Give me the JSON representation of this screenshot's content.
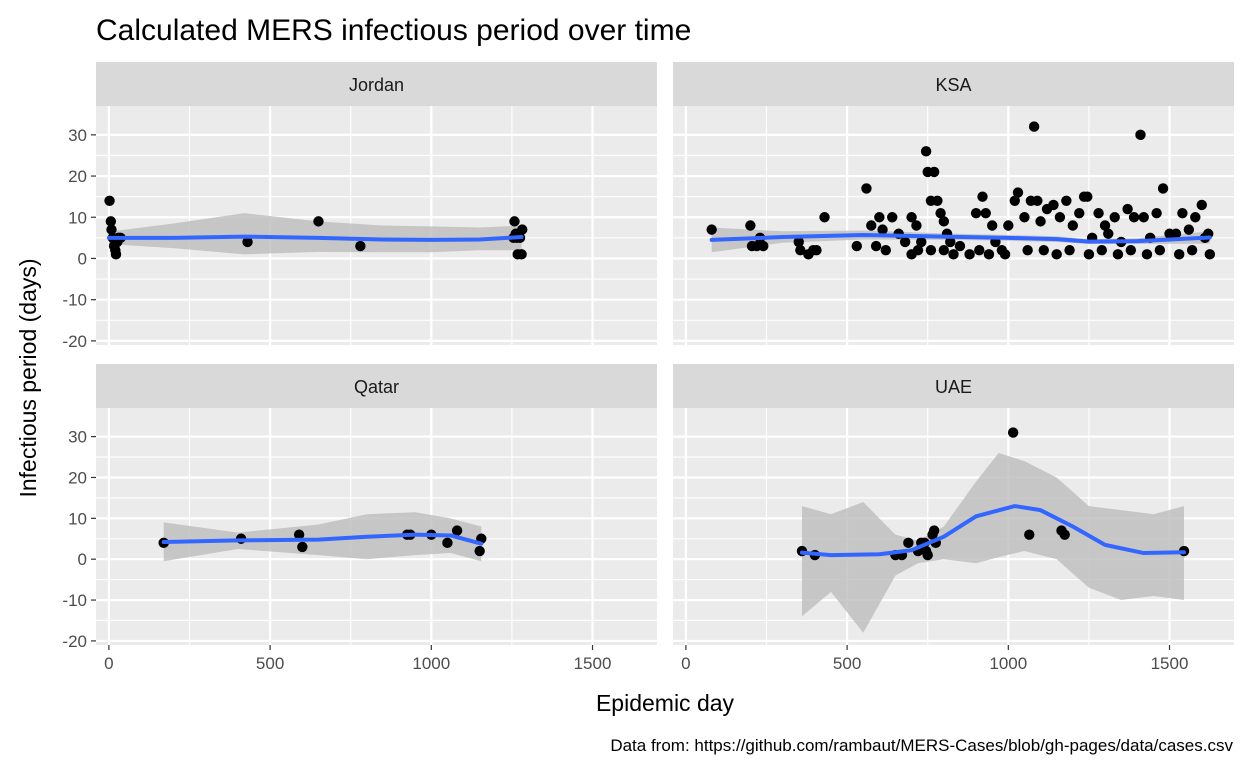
{
  "title": "Calculated MERS infectious period over time",
  "caption": "Data from: https://github.com/rambaut/MERS-Cases/blob/gh-pages/data/cases.csv",
  "colors": {
    "panel_bg": "#EBEBEB",
    "strip_bg": "#D9D9D9",
    "grid": "#FFFFFF",
    "point": "#000000",
    "smooth_line": "#3366FF",
    "ribbon": "#BDBDBD",
    "axis_text": "#4D4D4D"
  },
  "chart_data": {
    "type": "scatter",
    "facet_layout": "2x2",
    "xlabel": "Epidemic day",
    "ylabel": "Infectious period (days)",
    "xlim": [
      -40,
      1700
    ],
    "ylim": [
      -21,
      37
    ],
    "x_ticks": [
      0,
      500,
      1000,
      1500
    ],
    "y_ticks": [
      -20,
      -10,
      0,
      10,
      20,
      30
    ],
    "grid": true,
    "smooth_method": "loess",
    "panels": [
      {
        "name": "Jordan",
        "points": [
          [
            2,
            14
          ],
          [
            6,
            9
          ],
          [
            8,
            7
          ],
          [
            12,
            5
          ],
          [
            16,
            3
          ],
          [
            20,
            2
          ],
          [
            22,
            1
          ],
          [
            26,
            4
          ],
          [
            30,
            5
          ],
          [
            36,
            5
          ],
          [
            430,
            4
          ],
          [
            650,
            9
          ],
          [
            780,
            3
          ],
          [
            1255,
            5
          ],
          [
            1258,
            9
          ],
          [
            1262,
            6
          ],
          [
            1265,
            5
          ],
          [
            1268,
            1
          ],
          [
            1272,
            6
          ],
          [
            1275,
            5
          ],
          [
            1280,
            1
          ],
          [
            1282,
            7
          ]
        ],
        "smooth": [
          [
            0,
            5
          ],
          [
            200,
            5
          ],
          [
            420,
            5.3
          ],
          [
            650,
            5
          ],
          [
            850,
            4.6
          ],
          [
            1000,
            4.5
          ],
          [
            1150,
            4.6
          ],
          [
            1280,
            5.2
          ]
        ],
        "ribbon": [
          [
            0,
            3.5,
            6.5
          ],
          [
            200,
            2.5,
            8.5
          ],
          [
            420,
            1,
            11
          ],
          [
            650,
            1.6,
            9
          ],
          [
            850,
            1.5,
            8
          ],
          [
            1000,
            1.5,
            7.8
          ],
          [
            1150,
            2,
            7.5
          ],
          [
            1280,
            2,
            8
          ]
        ]
      },
      {
        "name": "KSA",
        "points": [
          [
            80,
            7
          ],
          [
            200,
            8
          ],
          [
            205,
            3
          ],
          [
            220,
            3
          ],
          [
            230,
            5
          ],
          [
            240,
            3
          ],
          [
            350,
            4
          ],
          [
            355,
            2
          ],
          [
            380,
            1
          ],
          [
            395,
            2
          ],
          [
            405,
            2
          ],
          [
            430,
            10
          ],
          [
            530,
            3
          ],
          [
            560,
            17
          ],
          [
            575,
            8
          ],
          [
            590,
            3
          ],
          [
            600,
            10
          ],
          [
            610,
            7
          ],
          [
            620,
            2
          ],
          [
            640,
            10
          ],
          [
            660,
            6
          ],
          [
            680,
            4
          ],
          [
            700,
            10
          ],
          [
            715,
            8
          ],
          [
            730,
            4
          ],
          [
            745,
            26
          ],
          [
            750,
            21
          ],
          [
            760,
            14
          ],
          [
            770,
            21
          ],
          [
            780,
            14
          ],
          [
            790,
            11
          ],
          [
            800,
            9
          ],
          [
            810,
            6
          ],
          [
            820,
            4
          ],
          [
            830,
            1
          ],
          [
            850,
            3
          ],
          [
            900,
            11
          ],
          [
            920,
            15
          ],
          [
            930,
            11
          ],
          [
            950,
            8
          ],
          [
            960,
            4
          ],
          [
            980,
            2
          ],
          [
            1000,
            8
          ],
          [
            1020,
            14
          ],
          [
            1030,
            16
          ],
          [
            1050,
            10
          ],
          [
            1070,
            14
          ],
          [
            1080,
            32
          ],
          [
            1090,
            14
          ],
          [
            1100,
            9
          ],
          [
            1120,
            12
          ],
          [
            1140,
            13
          ],
          [
            1160,
            10
          ],
          [
            1180,
            14
          ],
          [
            1200,
            8
          ],
          [
            1220,
            11
          ],
          [
            1235,
            15
          ],
          [
            1245,
            15
          ],
          [
            1260,
            5
          ],
          [
            1280,
            11
          ],
          [
            1300,
            8
          ],
          [
            1310,
            6
          ],
          [
            1330,
            10
          ],
          [
            1350,
            4
          ],
          [
            1370,
            12
          ],
          [
            1390,
            10
          ],
          [
            1410,
            30
          ],
          [
            1420,
            10
          ],
          [
            1440,
            5
          ],
          [
            1460,
            11
          ],
          [
            1480,
            17
          ],
          [
            1500,
            6
          ],
          [
            1520,
            6
          ],
          [
            1540,
            11
          ],
          [
            1560,
            7
          ],
          [
            1580,
            10
          ],
          [
            1600,
            13
          ],
          [
            1610,
            5
          ],
          [
            1620,
            6
          ],
          [
            1625,
            1
          ],
          [
            700,
            1
          ],
          [
            720,
            2
          ],
          [
            760,
            2
          ],
          [
            800,
            2
          ],
          [
            880,
            1
          ],
          [
            910,
            2
          ],
          [
            940,
            1
          ],
          [
            990,
            1
          ],
          [
            1060,
            2
          ],
          [
            1110,
            2
          ],
          [
            1150,
            1
          ],
          [
            1190,
            2
          ],
          [
            1250,
            1
          ],
          [
            1290,
            2
          ],
          [
            1340,
            1
          ],
          [
            1380,
            2
          ],
          [
            1430,
            1
          ],
          [
            1470,
            2
          ],
          [
            1530,
            1
          ],
          [
            1570,
            2
          ]
        ],
        "smooth": [
          [
            80,
            4.5
          ],
          [
            300,
            5.2
          ],
          [
            550,
            5.7
          ],
          [
            800,
            5.3
          ],
          [
            1000,
            5
          ],
          [
            1150,
            4.7
          ],
          [
            1250,
            4.1
          ],
          [
            1400,
            4.2
          ],
          [
            1625,
            5.1
          ]
        ],
        "ribbon": [
          [
            80,
            1.5,
            7.5
          ],
          [
            300,
            3.8,
            6.6
          ],
          [
            550,
            4.6,
            6.8
          ],
          [
            800,
            4.5,
            6.1
          ],
          [
            1000,
            4.3,
            5.7
          ],
          [
            1150,
            4,
            5.4
          ],
          [
            1250,
            3.5,
            4.7
          ],
          [
            1400,
            3.5,
            4.9
          ],
          [
            1625,
            3.6,
            6.6
          ]
        ]
      },
      {
        "name": "Qatar",
        "points": [
          [
            170,
            4
          ],
          [
            410,
            5
          ],
          [
            590,
            6
          ],
          [
            600,
            3
          ],
          [
            925,
            6
          ],
          [
            935,
            6
          ],
          [
            1000,
            6
          ],
          [
            1050,
            4
          ],
          [
            1080,
            7
          ],
          [
            1150,
            2
          ],
          [
            1155,
            5
          ]
        ],
        "smooth": [
          [
            170,
            4.2
          ],
          [
            400,
            4.6
          ],
          [
            650,
            4.8
          ],
          [
            800,
            5.5
          ],
          [
            950,
            6
          ],
          [
            1060,
            5.8
          ],
          [
            1155,
            3.8
          ]
        ],
        "ribbon": [
          [
            170,
            -0.5,
            9
          ],
          [
            400,
            2.5,
            6.5
          ],
          [
            650,
            1,
            8.5
          ],
          [
            800,
            0,
            11
          ],
          [
            950,
            1,
            11.5
          ],
          [
            1060,
            1.5,
            10
          ],
          [
            1155,
            -0.5,
            8
          ]
        ]
      },
      {
        "name": "UAE",
        "points": [
          [
            360,
            2
          ],
          [
            400,
            1
          ],
          [
            650,
            1
          ],
          [
            670,
            1
          ],
          [
            690,
            4
          ],
          [
            720,
            2
          ],
          [
            730,
            4
          ],
          [
            740,
            4
          ],
          [
            745,
            2
          ],
          [
            750,
            1
          ],
          [
            765,
            6
          ],
          [
            770,
            7
          ],
          [
            775,
            4
          ],
          [
            1015,
            31
          ],
          [
            1065,
            6
          ],
          [
            1165,
            7
          ],
          [
            1175,
            6
          ],
          [
            1545,
            2
          ]
        ],
        "smooth": [
          [
            360,
            1.6
          ],
          [
            450,
            1
          ],
          [
            600,
            1.2
          ],
          [
            700,
            2.2
          ],
          [
            800,
            5.5
          ],
          [
            900,
            10.5
          ],
          [
            1020,
            13
          ],
          [
            1100,
            12
          ],
          [
            1200,
            8
          ],
          [
            1300,
            3.5
          ],
          [
            1420,
            1.5
          ],
          [
            1545,
            1.7
          ]
        ],
        "ribbon": [
          [
            360,
            -14,
            13
          ],
          [
            450,
            -8,
            11
          ],
          [
            550,
            -18,
            14
          ],
          [
            650,
            -4,
            6
          ],
          [
            720,
            -1,
            4.5
          ],
          [
            800,
            0,
            8
          ],
          [
            900,
            -1,
            19
          ],
          [
            970,
            0.5,
            26
          ],
          [
            1050,
            2,
            24
          ],
          [
            1150,
            0,
            20
          ],
          [
            1250,
            -7,
            13
          ],
          [
            1350,
            -10,
            12
          ],
          [
            1450,
            -9,
            11
          ],
          [
            1545,
            -10,
            13
          ]
        ]
      }
    ]
  }
}
